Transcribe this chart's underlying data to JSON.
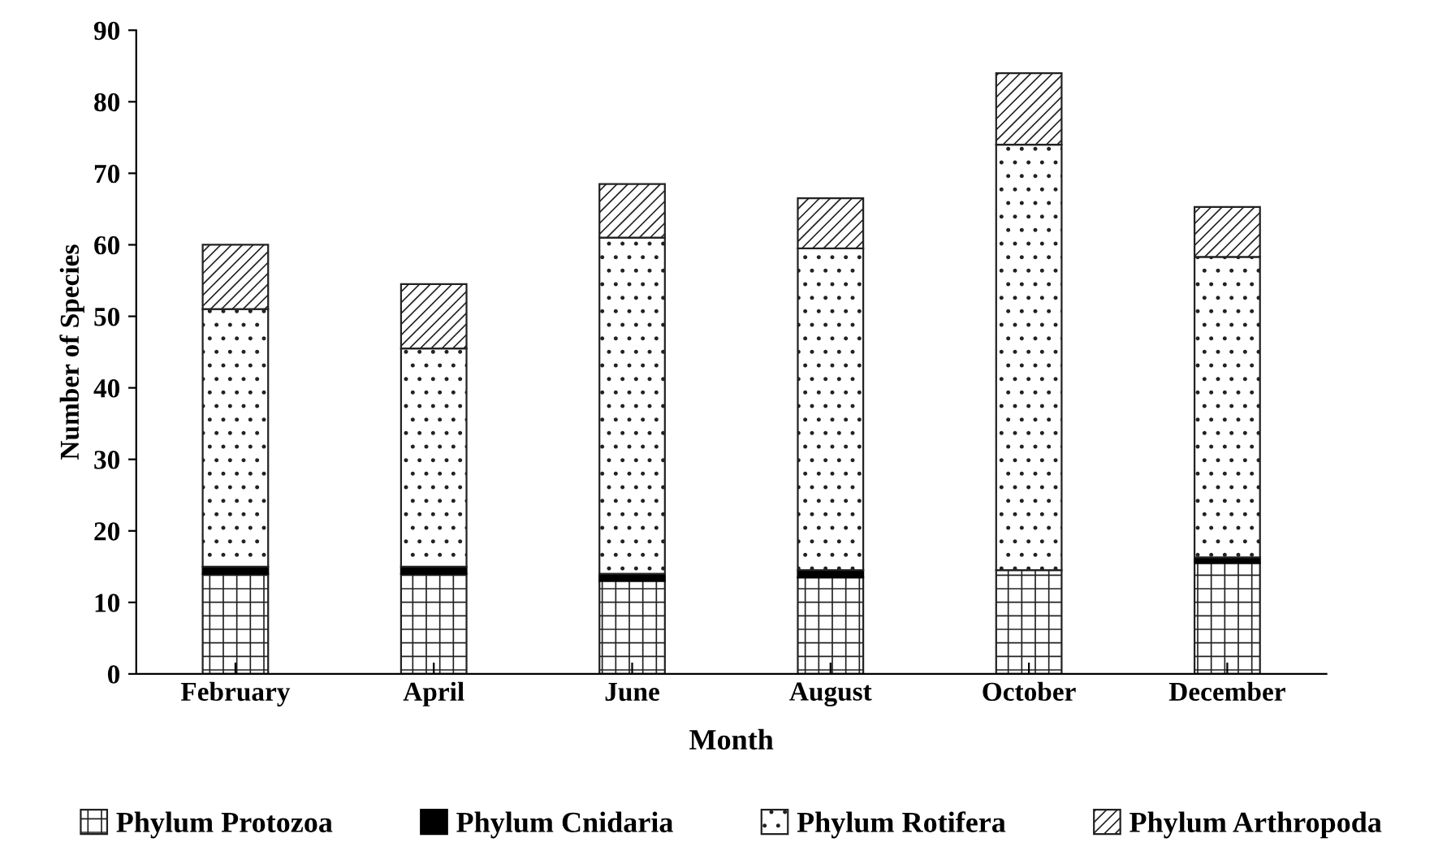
{
  "chart_data": {
    "type": "bar",
    "stacked": true,
    "xlabel": "Month",
    "ylabel": "Number of Species",
    "categories": [
      "February",
      "April",
      "June",
      "August",
      "October",
      "December"
    ],
    "series": [
      {
        "name": "Phylum Protozoa",
        "color": "#222222",
        "values": [
          14,
          14,
          13,
          13.5,
          14.5,
          15.5
        ]
      },
      {
        "name": "Phylum Cnidaria",
        "color": "#000000",
        "values": [
          1,
          1,
          1,
          1,
          0,
          0.8
        ]
      },
      {
        "name": "Phylum Rotifera",
        "color": "#222222",
        "values": [
          36,
          30.5,
          47,
          45,
          59.5,
          42
        ]
      },
      {
        "name": "Phylum Arthropoda",
        "color": "#222222",
        "values": [
          9,
          9,
          7.5,
          7,
          10,
          7
        ]
      }
    ],
    "ylim": [
      0,
      90
    ],
    "yticks": [
      0,
      10,
      20,
      30,
      40,
      50,
      60,
      70,
      80,
      90
    ],
    "grid": false,
    "legend": "bottom"
  }
}
